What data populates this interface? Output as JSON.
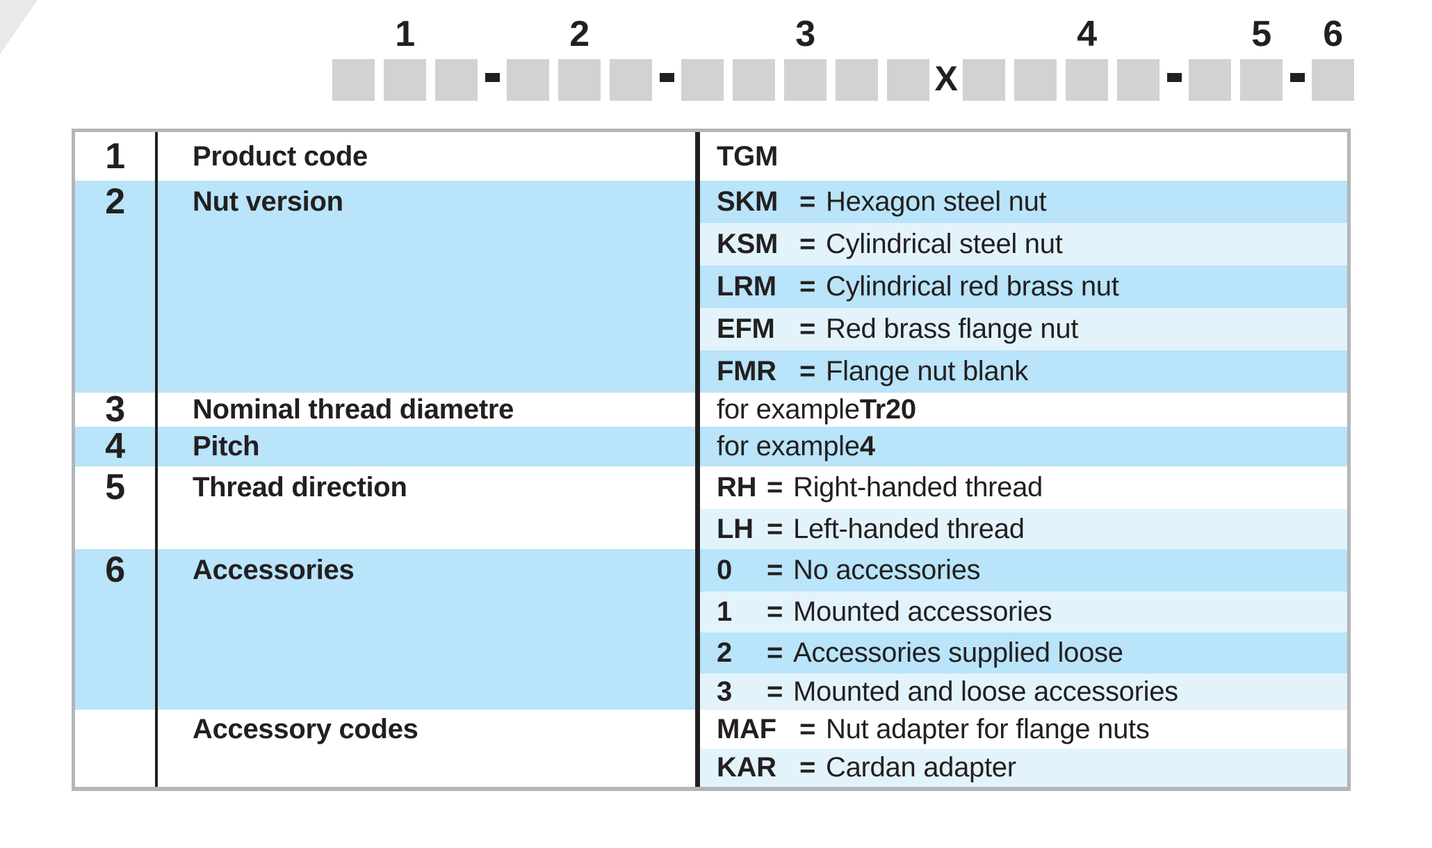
{
  "code_diagram": {
    "groups": [
      {
        "label": "1",
        "boxes": 3
      },
      {
        "label": "2",
        "boxes": 3
      },
      {
        "label": "3",
        "boxes": 5
      },
      {
        "label": "4",
        "boxes": 4
      },
      {
        "label": "5",
        "boxes": 2
      },
      {
        "label": "6",
        "boxes": 1
      }
    ],
    "separators": [
      "-",
      "-",
      "X",
      "-",
      "-"
    ]
  },
  "table": {
    "sections": [
      {
        "num": "1",
        "label": "Product code",
        "tone": "white",
        "rows": [
          {
            "code": "TGM",
            "bg": "white",
            "slot": "wide"
          }
        ]
      },
      {
        "num": "2",
        "label": "Nut version",
        "tone": "blue",
        "rows": [
          {
            "code": "SKM",
            "eq": "=",
            "desc": "Hexagon steel nut",
            "bg": "blue",
            "slot": "wide"
          },
          {
            "code": "KSM",
            "eq": "=",
            "desc": "Cylindrical steel nut",
            "bg": "pale",
            "slot": "wide"
          },
          {
            "code": "LRM",
            "eq": "=",
            "desc": "Cylindrical red brass nut",
            "bg": "blue",
            "slot": "wide"
          },
          {
            "code": "EFM",
            "eq": "=",
            "desc": "Red brass flange nut",
            "bg": "pale",
            "slot": "wide"
          },
          {
            "code": "FMR",
            "eq": "=",
            "desc": "Flange nut blank",
            "bg": "blue",
            "slot": "wide"
          }
        ]
      },
      {
        "num": "3",
        "label": "Nominal thread diametre",
        "tone": "white",
        "rows": [
          {
            "prefix": "for example ",
            "example": "Tr20",
            "bg": "white"
          }
        ]
      },
      {
        "num": "4",
        "label": "Pitch",
        "tone": "blue",
        "rows": [
          {
            "prefix": "for example ",
            "example": "4",
            "bg": "blue"
          }
        ]
      },
      {
        "num": "5",
        "label": "Thread direction",
        "tone": "white",
        "rows": [
          {
            "code": "RH",
            "eq": "=",
            "desc": "Right-handed thread",
            "bg": "white",
            "slot": "narrow"
          },
          {
            "code": "LH",
            "eq": "=",
            "desc": "Left-handed thread",
            "bg": "pale",
            "slot": "narrow"
          }
        ]
      },
      {
        "num": "6",
        "label": "Accessories",
        "tone": "blue",
        "rows": [
          {
            "code": "0",
            "eq": "=",
            "desc": "No accessories",
            "bg": "blue",
            "slot": "narrow"
          },
          {
            "code": "1",
            "eq": "=",
            "desc": "Mounted accessories",
            "bg": "pale",
            "slot": "narrow"
          },
          {
            "code": "2",
            "eq": "=",
            "desc": "Accessories supplied loose",
            "bg": "blue",
            "slot": "narrow"
          },
          {
            "code": "3",
            "eq": "=",
            "desc": "Mounted and loose accessories",
            "bg": "pale",
            "slot": "narrow"
          }
        ]
      },
      {
        "num": "",
        "label": "Accessory codes",
        "tone": "white",
        "rows": [
          {
            "code": "MAF",
            "eq": "=",
            "desc": "Nut adapter for flange nuts",
            "bg": "white",
            "slot": "wide"
          },
          {
            "code": "KAR",
            "eq": "=",
            "desc": "Cardan adapter",
            "bg": "pale",
            "slot": "wide"
          }
        ]
      }
    ]
  },
  "colors": {
    "medium_blue": "#b9e4f9",
    "pale_blue": "#e3f3fc",
    "box_gray": "#d2d2d4",
    "border_gray": "#b3b6b9",
    "text_black": "#231f20"
  }
}
